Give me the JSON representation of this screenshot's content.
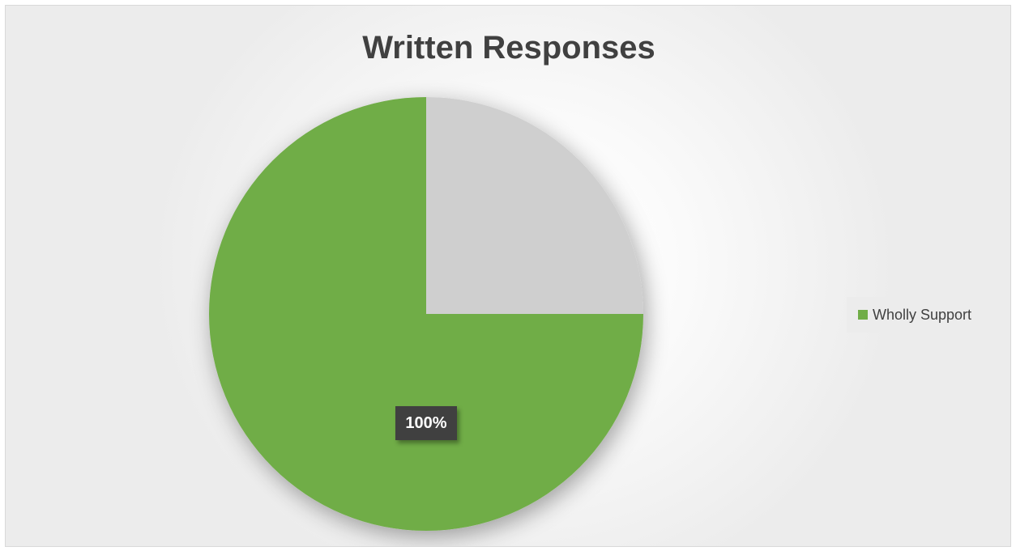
{
  "chart_data": {
    "type": "pie",
    "title": "Written Responses",
    "slices": [
      {
        "name": "Wholly Support",
        "value": 100,
        "label": "100%",
        "color": "#70ad47"
      }
    ],
    "background_slice_color": "#cfcfcf",
    "legend": {
      "placement": "right",
      "entries": [
        "Wholly Support"
      ]
    }
  }
}
